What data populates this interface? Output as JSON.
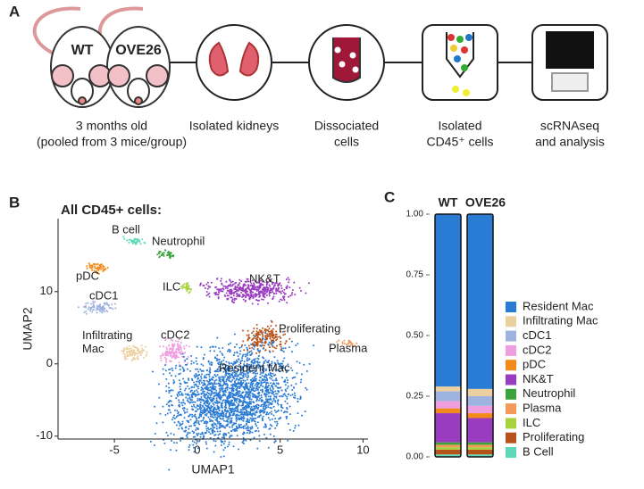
{
  "panel_a": {
    "label": "A",
    "mice": [
      "WT",
      "OVE26"
    ],
    "steps": [
      {
        "lines": [
          "3 months old",
          "(pooled from 3 mice/group)"
        ]
      },
      {
        "lines": [
          "Isolated kidneys"
        ]
      },
      {
        "lines": [
          "Dissociated",
          "cells"
        ]
      },
      {
        "lines": [
          "Isolated",
          "CD45⁺ cells"
        ]
      },
      {
        "lines": [
          "scRNAseq",
          "and analysis"
        ]
      }
    ]
  },
  "chart_data": [
    {
      "type": "scatter",
      "label": "B",
      "title": "All CD45+ cells:",
      "xlabel": "UMAP1",
      "ylabel": "UMAP2",
      "xlim": [
        -8.4,
        10.3
      ],
      "ylim": [
        -10.4,
        20.1
      ],
      "xticks": [
        -5,
        0,
        5,
        10
      ],
      "yticks": [
        -10,
        0,
        10
      ],
      "series": [
        {
          "name": "B cell",
          "color": "#5ed8b8",
          "x": -3.8,
          "y": 17
        },
        {
          "name": "Neutrophil",
          "color": "#3aa33a",
          "x": -1.9,
          "y": 15.2
        },
        {
          "name": "pDC",
          "color": "#f28a1c",
          "x": -6.0,
          "y": 13.3
        },
        {
          "name": "cDC1",
          "color": "#9fb3e0",
          "x": -6.0,
          "y": 7.8
        },
        {
          "name": "ILC",
          "color": "#a6d23c",
          "x": -0.6,
          "y": 10.6
        },
        {
          "name": "NK&T",
          "color": "#9a3cc0",
          "x": 3.2,
          "y": 10.2
        },
        {
          "name": "Proliferating",
          "color": "#b5531a",
          "x": 4.0,
          "y": 3.5
        },
        {
          "name": "Plasma",
          "color": "#f29a5a",
          "x": 9.1,
          "y": 2.8
        },
        {
          "name": "Infiltrating Mac",
          "color": "#eccf9f",
          "x": -3.8,
          "y": 1.6
        },
        {
          "name": "cDC2",
          "color": "#ef9fe0",
          "x": -1.4,
          "y": 1.6
        },
        {
          "name": "Resident Mac",
          "color": "#2a7bd4",
          "x": 2.1,
          "y": -4.6
        }
      ]
    },
    {
      "type": "bar",
      "label": "C",
      "categories": [
        "WT",
        "OVE26"
      ],
      "ylim": [
        0,
        1
      ],
      "yticks": [
        {
          "value": 0,
          "label": "0.00"
        },
        {
          "value": 0.25,
          "label": "0.25"
        },
        {
          "value": 0.5,
          "label": "0.50"
        },
        {
          "value": 0.75,
          "label": "0.75"
        },
        {
          "value": 1,
          "label": "1.00"
        }
      ],
      "series": [
        {
          "name": "Resident Mac",
          "color": "#2a7bd4",
          "values": [
            0.71,
            0.72
          ]
        },
        {
          "name": "Infiltrating Mac",
          "color": "#eccf9f",
          "values": [
            0.02,
            0.03
          ]
        },
        {
          "name": "cDC1",
          "color": "#9fb3e0",
          "values": [
            0.04,
            0.04
          ]
        },
        {
          "name": "cDC2",
          "color": "#ef9fe0",
          "values": [
            0.03,
            0.03
          ]
        },
        {
          "name": "pDC",
          "color": "#f28a1c",
          "values": [
            0.02,
            0.02
          ]
        },
        {
          "name": "NK&T",
          "color": "#9a3cc0",
          "values": [
            0.12,
            0.1
          ]
        },
        {
          "name": "Neutrophil",
          "color": "#3aa33a",
          "values": [
            0.01,
            0.01
          ]
        },
        {
          "name": "Plasma",
          "color": "#f29a5a",
          "values": [
            0.01,
            0.01
          ]
        },
        {
          "name": "ILC",
          "color": "#a6d23c",
          "values": [
            0.01,
            0.01
          ]
        },
        {
          "name": "Proliferating",
          "color": "#b5531a",
          "values": [
            0.02,
            0.02
          ]
        },
        {
          "name": "B Cell",
          "color": "#5ed8b8",
          "values": [
            0.01,
            0.01
          ]
        }
      ]
    }
  ]
}
